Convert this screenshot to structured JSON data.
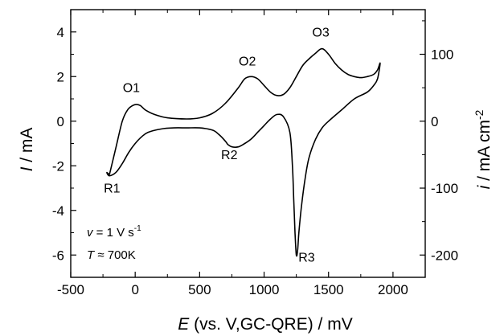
{
  "chart_data": {
    "type": "line",
    "title": "",
    "xlabel": {
      "symbol": "E",
      "text": " (vs. V,GC-QRE) / mV"
    },
    "ylabel_left": {
      "symbol": "I",
      "text": " / mA"
    },
    "ylabel_right": {
      "symbol": "i",
      "text": " / mA cm",
      "sup": "-2"
    },
    "xlim": [
      -500,
      2250
    ],
    "ylim": [
      -7,
      5
    ],
    "ylim_right": [
      -233.3,
      166.7
    ],
    "xticks": [
      "-500",
      "0",
      "500",
      "1000",
      "1500",
      "2000"
    ],
    "xtick_values": [
      -500,
      0,
      500,
      1000,
      1500,
      2000
    ],
    "yticks_left": [
      "-6",
      "-4",
      "-2",
      "0",
      "2",
      "4"
    ],
    "ytick_values_left": [
      -6,
      -4,
      -2,
      0,
      2,
      4
    ],
    "yticks_right": [
      "-200",
      "-100",
      "0",
      "100"
    ],
    "ytick_values_right": [
      -200,
      -100,
      0,
      100
    ],
    "grid": false,
    "series": [
      {
        "name": "",
        "color": "#000000",
        "x": [
          -200,
          -150,
          -100,
          -60,
          -20,
          10,
          40,
          80,
          150,
          250,
          400,
          500,
          600,
          700,
          800,
          850,
          900,
          950,
          1000,
          1050,
          1100,
          1150,
          1200,
          1250,
          1300,
          1350,
          1400,
          1450,
          1500,
          1550,
          1600,
          1650,
          1700,
          1750,
          1800,
          1850,
          1880,
          1900,
          1880,
          1850,
          1800,
          1700,
          1600,
          1500,
          1450,
          1400,
          1350,
          1320,
          1290,
          1270,
          1260,
          1250,
          1240,
          1230,
          1220,
          1200,
          1150,
          1100,
          1050,
          1000,
          950,
          900,
          850,
          800,
          750,
          720,
          700,
          650,
          600,
          500,
          400,
          300,
          200,
          100,
          50,
          0,
          -50,
          -100,
          -150,
          -200,
          -220,
          -200
        ],
        "y": [
          -2.4,
          -1.2,
          0.0,
          0.5,
          0.7,
          0.75,
          0.7,
          0.5,
          0.3,
          0.15,
          0.1,
          0.15,
          0.35,
          0.8,
          1.5,
          1.9,
          2.0,
          1.9,
          1.6,
          1.3,
          1.15,
          1.2,
          1.5,
          2.0,
          2.5,
          2.8,
          3.05,
          3.25,
          3.0,
          2.6,
          2.3,
          2.1,
          2.0,
          1.95,
          2.0,
          2.1,
          2.3,
          2.6,
          1.9,
          1.6,
          1.3,
          1.0,
          0.5,
          0.0,
          -0.3,
          -0.8,
          -1.6,
          -2.5,
          -3.8,
          -5.0,
          -5.8,
          -6.0,
          -5.0,
          -3.5,
          -2.0,
          -0.5,
          0.2,
          0.3,
          0.1,
          -0.2,
          -0.5,
          -0.8,
          -1.0,
          -1.15,
          -1.15,
          -1.05,
          -0.9,
          -0.6,
          -0.4,
          -0.3,
          -0.3,
          -0.3,
          -0.35,
          -0.5,
          -0.7,
          -1.0,
          -1.4,
          -1.9,
          -2.3,
          -2.45,
          -2.3,
          -2.4
        ]
      }
    ],
    "peak_labels": [
      {
        "text": "O1",
        "x": -30,
        "y": 1.3
      },
      {
        "text": "O2",
        "x": 870,
        "y": 2.5
      },
      {
        "text": "O3",
        "x": 1440,
        "y": 3.8
      },
      {
        "text": "R1",
        "x": -180,
        "y": -3.2
      },
      {
        "text": "R2",
        "x": 730,
        "y": -1.7
      },
      {
        "text": "R3",
        "x": 1330,
        "y": -6.3
      }
    ],
    "conditions": [
      {
        "symbol": "v",
        "rest": " = 1 V s",
        "sup": "-1"
      },
      {
        "symbol": "T",
        "rest": " ≈ 700K",
        "sup": ""
      }
    ]
  }
}
